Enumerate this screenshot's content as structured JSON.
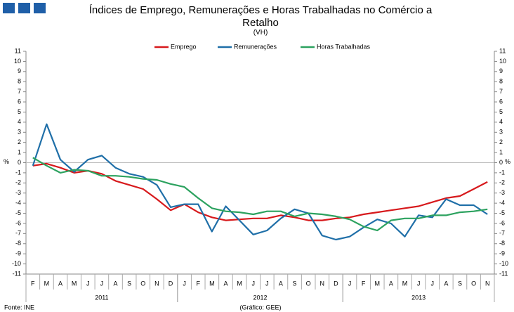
{
  "chart_data": {
    "type": "line",
    "title": "Índices de Emprego, Remunerações e Horas Trabalhadas no Comércio a Retalho",
    "subtitle": "(VH)",
    "ylabel": "%",
    "source": "Fonte: INE",
    "credit": "(Gráfico: GEE)",
    "categories": [
      "F",
      "M",
      "A",
      "M",
      "J",
      "J",
      "A",
      "S",
      "O",
      "N",
      "D",
      "J",
      "F",
      "M",
      "A",
      "M",
      "J",
      "J",
      "A",
      "S",
      "O",
      "N",
      "D",
      "J",
      "F",
      "M",
      "A",
      "M",
      "J",
      "J",
      "A",
      "S",
      "O",
      "N"
    ],
    "years": [
      "2011",
      "2012",
      "2013"
    ],
    "year_spans": [
      11,
      12,
      11
    ],
    "ylim": [
      -11,
      11
    ],
    "yticks": [
      -11,
      -10,
      -9,
      -8,
      -7,
      -6,
      -5,
      -4,
      -3,
      -2,
      -1,
      0,
      1,
      2,
      3,
      4,
      5,
      6,
      7,
      8,
      9,
      10,
      11
    ],
    "legend": "top",
    "series": [
      {
        "name": "Emprego",
        "color": "#d7191c",
        "values": [
          -0.3,
          -0.1,
          -0.5,
          -1.0,
          -0.8,
          -1.1,
          -1.8,
          -2.2,
          -2.6,
          -3.6,
          -4.7,
          -4.1,
          -4.9,
          -5.4,
          -5.7,
          -5.6,
          -5.5,
          -5.5,
          -5.2,
          -5.4,
          -5.7,
          -5.7,
          -5.5,
          -5.4,
          -5.1,
          -4.9,
          -4.7,
          -4.5,
          -4.3,
          -3.9,
          -3.5,
          -3.3,
          -2.6,
          -1.9
        ]
      },
      {
        "name": "Remunerações",
        "color": "#1f6fa8",
        "values": [
          -0.3,
          3.8,
          0.3,
          -0.9,
          0.3,
          0.7,
          -0.5,
          -1.1,
          -1.4,
          -2.2,
          -4.4,
          -4.1,
          -4.1,
          -6.8,
          -4.3,
          -5.7,
          -7.1,
          -6.7,
          -5.5,
          -4.6,
          -5.0,
          -7.2,
          -7.6,
          -7.3,
          -6.4,
          -5.6,
          -6.0,
          -7.3,
          -5.2,
          -5.4,
          -3.6,
          -4.2,
          -4.2,
          -5.1
        ]
      },
      {
        "name": "Horas Trabalhadas",
        "color": "#2ca25f",
        "values": [
          0.5,
          -0.3,
          -1.0,
          -0.7,
          -0.8,
          -1.3,
          -1.3,
          -1.4,
          -1.6,
          -1.7,
          -2.1,
          -2.4,
          -3.5,
          -4.5,
          -4.8,
          -4.9,
          -5.1,
          -4.8,
          -4.8,
          -5.3,
          -5.0,
          -5.1,
          -5.3,
          -5.6,
          -6.3,
          -6.7,
          -5.7,
          -5.5,
          -5.5,
          -5.2,
          -5.2,
          -4.9,
          -4.8,
          -4.6
        ]
      }
    ]
  }
}
